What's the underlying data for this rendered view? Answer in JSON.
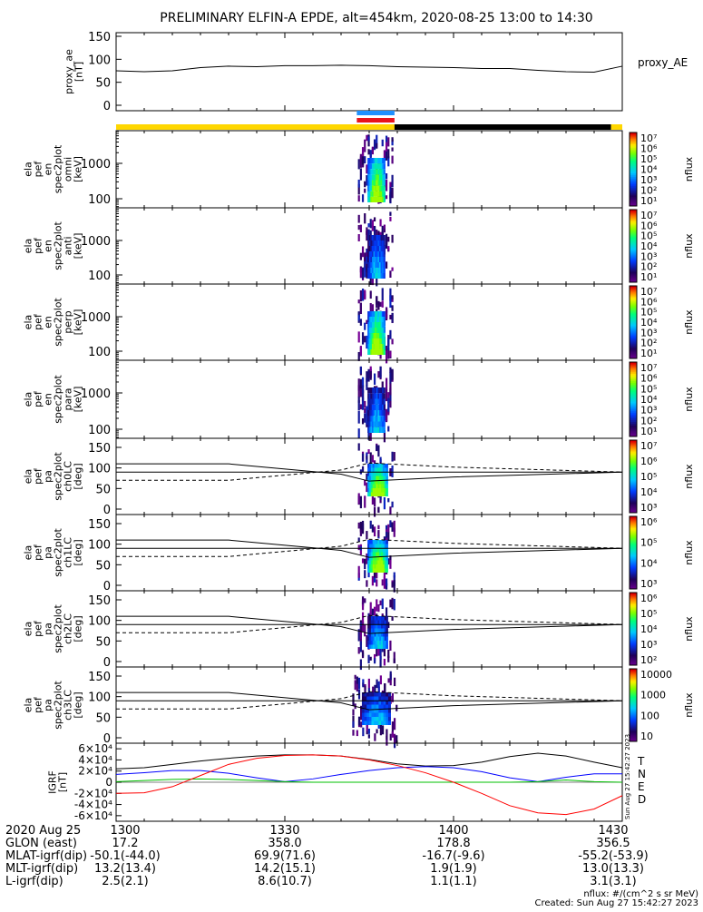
{
  "title": "PRELIMINARY ELFIN-A EPDE, alt=454km, 2020-08-25 13:00 to 14:30",
  "colors": {
    "state_yellow": "#FFD700",
    "state_black": "#000000",
    "sci_blue": "#1E90FF",
    "sci_red": "#E8141C",
    "grf_T": "#000000",
    "grf_N": "#0000FF",
    "grf_E": "#00C000",
    "grf_D": "#FF0000"
  },
  "chart_data": [
    {
      "id": "proxy_ae",
      "type": "line",
      "ylabel": [
        "proxy_ae",
        "[nT]"
      ],
      "legend": "proxy_AE",
      "ylim": [
        0,
        150
      ],
      "yticks": [
        "0",
        "50",
        "100",
        "150"
      ],
      "xlim": [
        0,
        90
      ],
      "x": [
        0,
        5,
        10,
        15,
        20,
        25,
        30,
        35,
        40,
        45,
        50,
        55,
        60,
        65,
        70,
        75,
        80,
        85,
        90
      ],
      "series": [
        {
          "values": [
            75,
            73,
            75,
            82,
            85,
            84,
            86,
            86,
            87,
            86,
            84,
            83,
            82,
            80,
            80,
            76,
            73,
            72,
            85
          ]
        }
      ]
    },
    {
      "id": "state_bar",
      "type": "bar",
      "segments_minutes": [
        {
          "from": 0,
          "to": 49.5,
          "color": "state_yellow"
        },
        {
          "from": 49.5,
          "to": 88,
          "color": "state_black"
        },
        {
          "from": 88,
          "to": 90,
          "color": "state_yellow"
        }
      ],
      "science_blue_minutes": [
        42.8,
        49.5
      ],
      "science_red_minutes": [
        42.8,
        49.5
      ]
    },
    {
      "id": "omni",
      "type": "heatmap",
      "ylabel": [
        "ela",
        "pef",
        "en",
        "spec2plot",
        "omni",
        "[keV]"
      ],
      "yticks": [
        "100",
        "1000"
      ],
      "log": true,
      "colorbar": {
        "label": "nflux",
        "ticks": [
          "10¹",
          "10²",
          "10³",
          "10⁴",
          "10⁵",
          "10⁶",
          "10⁷"
        ],
        "range": "1e1-1e7"
      },
      "active_minutes": [
        44,
        48.5
      ]
    },
    {
      "id": "anti",
      "type": "heatmap",
      "ylabel": [
        "ela",
        "pef",
        "en",
        "spec2plot",
        "anti",
        "[keV]"
      ],
      "yticks": [
        "100",
        "1000"
      ],
      "log": true,
      "colorbar": {
        "label": "nflux",
        "ticks": [
          "10¹",
          "10²",
          "10³",
          "10⁴",
          "10⁵",
          "10⁶",
          "10⁷"
        ],
        "range": "1e1-1e7"
      },
      "active_minutes": [
        44,
        48.5
      ]
    },
    {
      "id": "perp",
      "type": "heatmap",
      "ylabel": [
        "ela",
        "pef",
        "en",
        "spec2plot",
        "perp",
        "[keV]"
      ],
      "yticks": [
        "100",
        "1000"
      ],
      "log": true,
      "colorbar": {
        "label": "nflux",
        "ticks": [
          "10¹",
          "10²",
          "10³",
          "10⁴",
          "10⁵",
          "10⁶",
          "10⁷"
        ],
        "range": "1e1-1e7"
      },
      "active_minutes": [
        44,
        48.5
      ]
    },
    {
      "id": "para",
      "type": "heatmap",
      "ylabel": [
        "ela",
        "pef",
        "en",
        "spec2plot",
        "para",
        "[keV]"
      ],
      "yticks": [
        "100",
        "1000"
      ],
      "log": true,
      "colorbar": {
        "label": "nflux",
        "ticks": [
          "10¹",
          "10²",
          "10³",
          "10⁴",
          "10⁵",
          "10⁶",
          "10⁷"
        ],
        "range": "1e1-1e7"
      },
      "active_minutes": [
        44,
        48.5
      ]
    },
    {
      "id": "ch0LC",
      "type": "heatmap",
      "ylabel": [
        "ela",
        "pef",
        "pa",
        "spec2plot",
        "ch0LC",
        "[deg]"
      ],
      "ylim": [
        0,
        180
      ],
      "yticks": [
        "0",
        "50",
        "100",
        "150"
      ],
      "colorbar": {
        "label": "nflux",
        "ticks": [
          "10³",
          "10⁴",
          "10⁵",
          "10⁶",
          "10⁷"
        ],
        "range": "1e3-1e7"
      },
      "active_minutes": [
        44,
        49
      ]
    },
    {
      "id": "ch1LC",
      "type": "heatmap",
      "ylabel": [
        "ela",
        "pef",
        "pa",
        "spec2plot",
        "ch1LC",
        "[deg]"
      ],
      "ylim": [
        0,
        180
      ],
      "yticks": [
        "0",
        "50",
        "100",
        "150"
      ],
      "colorbar": {
        "label": "nflux",
        "ticks": [
          "10³",
          "10⁴",
          "10⁵",
          "10⁶"
        ],
        "range": "1e3-1e6"
      },
      "active_minutes": [
        44,
        49
      ]
    },
    {
      "id": "ch2LC",
      "type": "heatmap",
      "ylabel": [
        "ela",
        "pef",
        "pa",
        "spec2plot",
        "ch2LC",
        "[deg]"
      ],
      "ylim": [
        0,
        180
      ],
      "yticks": [
        "0",
        "50",
        "100",
        "150"
      ],
      "colorbar": {
        "label": "nflux",
        "ticks": [
          "10²",
          "10³",
          "10⁴",
          "10⁵",
          "10⁶"
        ],
        "range": "1e2-1e6"
      },
      "active_minutes": [
        44,
        49
      ]
    },
    {
      "id": "ch3LC",
      "type": "heatmap",
      "ylabel": [
        "ela",
        "pef",
        "pa",
        "spec2plot",
        "ch3LC",
        "[deg]"
      ],
      "ylim": [
        0,
        180
      ],
      "yticks": [
        "0",
        "50",
        "100",
        "150"
      ],
      "colorbar": {
        "label": "nflux",
        "ticks": [
          "10",
          "100",
          "1000",
          "10000"
        ],
        "range": "1e1-1e4"
      },
      "active_minutes": [
        43,
        49.5
      ]
    },
    {
      "id": "igrf",
      "type": "line",
      "ylabel": [
        "IGRF",
        "[nT]"
      ],
      "ylim": [
        -70000,
        70000
      ],
      "yticks": [
        "-6×10⁴",
        "-4×10⁴",
        "-2×10⁴",
        "0",
        "2×10⁴",
        "4×10⁴",
        "6×10⁴"
      ],
      "yticks_values": [
        -60000,
        -40000,
        -20000,
        0,
        20000,
        40000,
        60000
      ],
      "x": [
        0,
        5,
        10,
        15,
        20,
        25,
        30,
        35,
        40,
        45,
        50,
        55,
        60,
        65,
        70,
        75,
        80,
        85,
        90
      ],
      "series": [
        {
          "name": "T",
          "color": "grf_T",
          "values": [
            24000,
            26000,
            32000,
            38000,
            43000,
            47000,
            49000,
            49000,
            47000,
            41000,
            33000,
            29000,
            30000,
            36000,
            46000,
            52000,
            47000,
            36000,
            26000
          ]
        },
        {
          "name": "N",
          "color": "grf_N",
          "values": [
            14000,
            17000,
            21000,
            21000,
            16000,
            8000,
            1000,
            6000,
            14000,
            21000,
            26000,
            28000,
            26000,
            19000,
            8000,
            1000,
            9000,
            15000,
            15000
          ]
        },
        {
          "name": "E",
          "color": "grf_E",
          "values": [
            1000,
            3000,
            5000,
            6000,
            5000,
            3000,
            1000,
            0,
            0,
            0,
            0,
            0,
            0,
            0,
            0,
            1000,
            4000,
            1000,
            0
          ]
        },
        {
          "name": "D",
          "color": "grf_D",
          "values": [
            -20000,
            -19000,
            -8000,
            12000,
            32000,
            43000,
            48000,
            49000,
            47000,
            40000,
            30000,
            17000,
            0,
            -20000,
            -42000,
            -55000,
            -58000,
            -48000,
            -24000
          ]
        }
      ],
      "stamp": "Sun Aug 27 15:42:27 2023"
    }
  ],
  "xaxis": {
    "ticks": [
      {
        "minute": 0,
        "label": "1300"
      },
      {
        "minute": 30,
        "label": "1330"
      },
      {
        "minute": 60,
        "label": "1400"
      },
      {
        "minute": 90,
        "label": "1430"
      }
    ]
  },
  "orbit_table": {
    "rows": [
      {
        "label": "2020 Aug 25",
        "values": [
          "1300",
          "1330",
          "1400",
          "1430"
        ]
      },
      {
        "label": "GLON (east)",
        "values": [
          "17.2",
          "358.0",
          "178.8",
          "356.5"
        ]
      },
      {
        "label": "MLAT-igrf(dip)",
        "values": [
          "-50.1(-44.0)",
          "69.9(71.6)",
          "-16.7(-9.6)",
          "-55.2(-53.9)"
        ]
      },
      {
        "label": "MLT-igrf(dip)",
        "values": [
          "13.2(13.4)",
          "14.2(15.1)",
          "1.9(1.9)",
          "13.0(13.3)"
        ]
      },
      {
        "label": "L-igrf(dip)",
        "values": [
          "2.5(2.1)",
          "8.6(10.7)",
          "1.1(1.1)",
          "3.1(3.1)"
        ]
      }
    ]
  },
  "footer": {
    "units": "nflux: #/(cm^2 s sr MeV)",
    "created": "Created: Sun Aug 27 15:42:27 2023"
  }
}
